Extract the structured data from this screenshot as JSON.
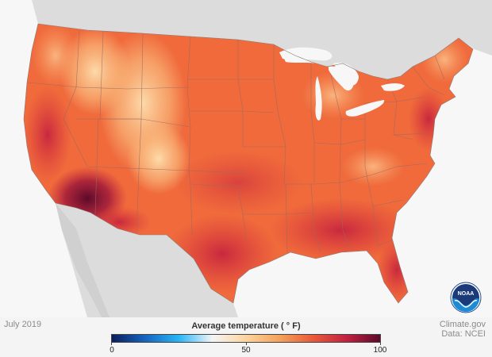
{
  "date_label": "July 2019",
  "legend": {
    "title": "Average temperature ( ° F)",
    "min_label": "0",
    "mid_label": "50",
    "max_label": "100",
    "min_value": 0,
    "mid_value": 50,
    "max_value": 100,
    "colors": [
      "#0b1e5c",
      "#1565c0",
      "#29b6f6",
      "#f5f5f5",
      "#fdd49e",
      "#f4a259",
      "#e95a3a",
      "#c3213f",
      "#5c0a2b"
    ]
  },
  "credit": {
    "line1": "Climate.gov",
    "line2": "Data: NCEI"
  },
  "logo": {
    "text": "NOAA",
    "icon": "noaa-logo-icon"
  },
  "map_colors": {
    "ocean": "#f7f7f7",
    "land_outside": "#dedede",
    "base_land": "#f06a3c",
    "mountain_cool": "#f9b77a",
    "desert_hot": "#8e1537",
    "gulf_warm": "#d8323a",
    "state_border": "#9a6a60"
  }
}
